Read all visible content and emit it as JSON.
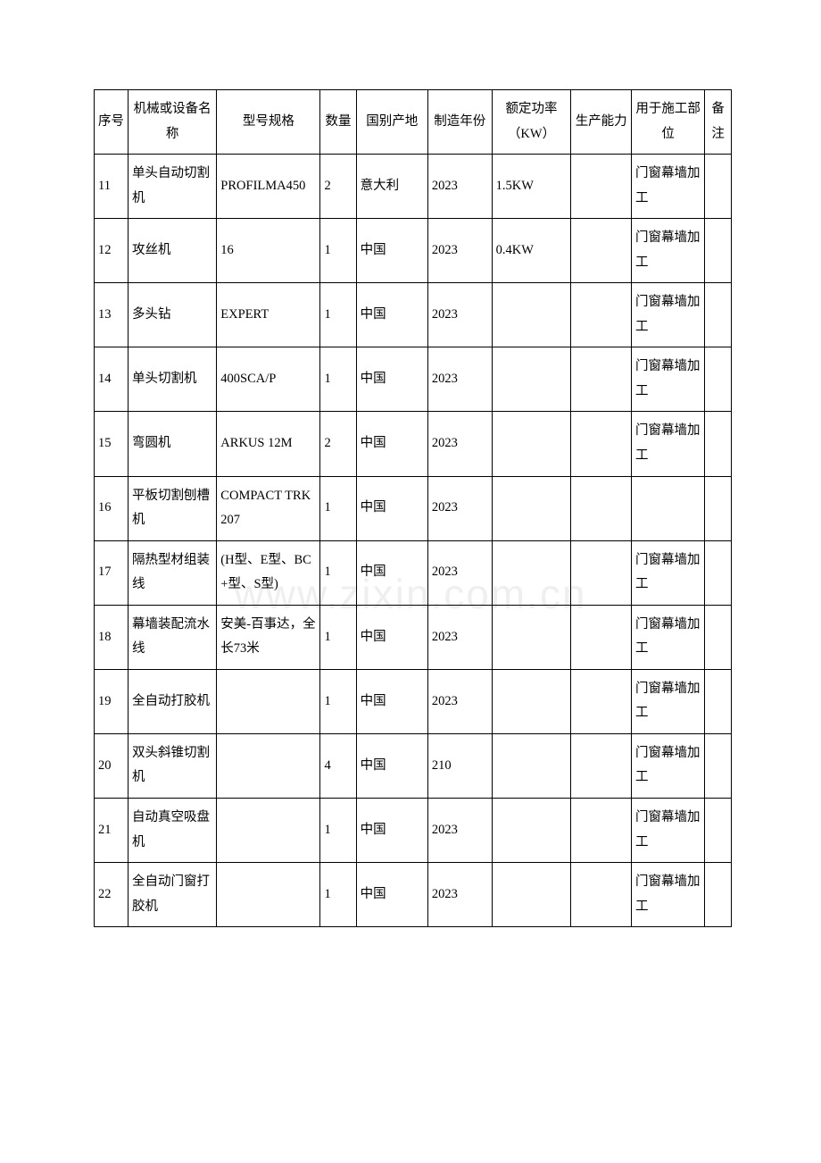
{
  "watermark": "www.zixin.com.cn",
  "table": {
    "columns": [
      "序号",
      "机械或设备名称",
      "型号规格",
      "数量",
      "国别产地",
      "制造年份",
      "额定功率（KW）",
      "生产能力",
      "用于施工部位",
      "备注"
    ],
    "rows": [
      {
        "seq": "11",
        "name": "单头自动切割机",
        "model": "PROFILMA450",
        "qty": "2",
        "origin": "意大利",
        "year": "2023",
        "power": "1.5KW",
        "cap": "",
        "use": "门窗幕墙加工",
        "note": ""
      },
      {
        "seq": "12",
        "name": "攻丝机",
        "model": "16",
        "qty": "1",
        "origin": "中国",
        "year": "2023",
        "power": "0.4KW",
        "cap": "",
        "use": "门窗幕墙加工",
        "note": ""
      },
      {
        "seq": "13",
        "name": "多头钻",
        "model": "EXPERT",
        "qty": "1",
        "origin": "中国",
        "year": "2023",
        "power": "",
        "cap": "",
        "use": "门窗幕墙加工",
        "note": ""
      },
      {
        "seq": "14",
        "name": "单头切割机",
        "model": "400SCA/P",
        "qty": "1",
        "origin": "中国",
        "year": "2023",
        "power": "",
        "cap": "",
        "use": "门窗幕墙加工",
        "note": ""
      },
      {
        "seq": "15",
        "name": "弯圆机",
        "model": "ARKUS 12M",
        "qty": "2",
        "origin": "中国",
        "year": "2023",
        "power": "",
        "cap": "",
        "use": "门窗幕墙加工",
        "note": ""
      },
      {
        "seq": "16",
        "name": "平板切割刨槽机",
        "model": "COMPACT TRK 207",
        "qty": "1",
        "origin": "中国",
        "year": "2023",
        "power": "",
        "cap": "",
        "use": "",
        "note": ""
      },
      {
        "seq": "17",
        "name": "隔热型材组装线",
        "model": "(H型、E型、BC+型、S型)",
        "qty": "1",
        "origin": "中国",
        "year": "2023",
        "power": "",
        "cap": "",
        "use": "门窗幕墙加工",
        "note": ""
      },
      {
        "seq": "18",
        "name": "幕墙装配流水线",
        "model": "安美-百事达，全长73米",
        "qty": "1",
        "origin": "中国",
        "year": "2023",
        "power": "",
        "cap": "",
        "use": "门窗幕墙加工",
        "note": ""
      },
      {
        "seq": "19",
        "name": "全自动打胶机",
        "model": "",
        "qty": "1",
        "origin": "中国",
        "year": "2023",
        "power": "",
        "cap": "",
        "use": "门窗幕墙加工",
        "note": ""
      },
      {
        "seq": "20",
        "name": "双头斜锥切割机",
        "model": "",
        "qty": "4",
        "origin": "中国",
        "year": "210",
        "power": "",
        "cap": "",
        "use": "门窗幕墙加工",
        "note": ""
      },
      {
        "seq": "21",
        "name": "自动真空吸盘机",
        "model": "",
        "qty": "1",
        "origin": "中国",
        "year": "2023",
        "power": "",
        "cap": "",
        "use": "门窗幕墙加工",
        "note": ""
      },
      {
        "seq": "22",
        "name": "全自动门窗打胶机",
        "model": "",
        "qty": "1",
        "origin": "中国",
        "year": "2023",
        "power": "",
        "cap": "",
        "use": "门窗幕墙加工",
        "note": ""
      }
    ]
  }
}
